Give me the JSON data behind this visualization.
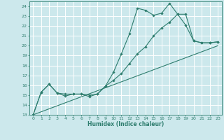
{
  "xlabel": "Humidex (Indice chaleur)",
  "bg_color": "#cce8ec",
  "grid_color": "#ffffff",
  "line_color": "#2e7d6e",
  "xlim": [
    -0.5,
    23.5
  ],
  "ylim": [
    13,
    24.5
  ],
  "xticks": [
    0,
    1,
    2,
    3,
    4,
    5,
    6,
    7,
    8,
    9,
    10,
    11,
    12,
    13,
    14,
    15,
    16,
    17,
    18,
    19,
    20,
    21,
    22,
    23
  ],
  "yticks": [
    13,
    14,
    15,
    16,
    17,
    18,
    19,
    20,
    21,
    22,
    23,
    24
  ],
  "line1_x": [
    0,
    1,
    2,
    3,
    4,
    5,
    6,
    7,
    8,
    9,
    10,
    11,
    12,
    13,
    14,
    15,
    16,
    17,
    18,
    19,
    20,
    21,
    22,
    23
  ],
  "line1_y": [
    13,
    15.3,
    16.1,
    15.2,
    14.9,
    15.1,
    15.1,
    14.85,
    15.1,
    15.9,
    17.3,
    19.2,
    21.2,
    23.8,
    23.6,
    23.1,
    23.3,
    24.3,
    23.2,
    22.1,
    20.5,
    20.3,
    20.3,
    20.4
  ],
  "line2_x": [
    0,
    1,
    2,
    3,
    4,
    5,
    6,
    7,
    8,
    9,
    10,
    11,
    12,
    13,
    14,
    15,
    16,
    17,
    18,
    19,
    20,
    21,
    22,
    23
  ],
  "line2_y": [
    13,
    15.3,
    16.1,
    15.2,
    15.1,
    15.1,
    15.1,
    15.0,
    15.1,
    15.9,
    16.5,
    17.2,
    18.2,
    19.2,
    19.9,
    21.0,
    21.8,
    22.4,
    23.2,
    23.2,
    20.5,
    20.3,
    20.3,
    20.4
  ],
  "line3_x": [
    0,
    23
  ],
  "line3_y": [
    13,
    20.0
  ]
}
